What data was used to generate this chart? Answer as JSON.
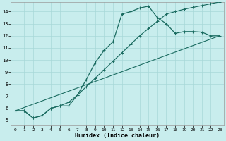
{
  "bg_color": "#c8eded",
  "grid_color": "#a8d8d8",
  "line_color": "#1a6b60",
  "xlabel": "Humidex (Indice chaleur)",
  "xlim_min": -0.5,
  "xlim_max": 23.5,
  "ylim_min": 4.6,
  "ylim_max": 14.8,
  "yticks": [
    5,
    6,
    7,
    8,
    9,
    10,
    11,
    12,
    13,
    14
  ],
  "xticks": [
    0,
    1,
    2,
    3,
    4,
    5,
    6,
    7,
    8,
    9,
    10,
    11,
    12,
    13,
    14,
    15,
    16,
    17,
    18,
    19,
    20,
    21,
    22,
    23
  ],
  "curve1_x": [
    0,
    1,
    2,
    3,
    4,
    5,
    6,
    7,
    8,
    9,
    10,
    11,
    12,
    13,
    14,
    15,
    16,
    17,
    18,
    19,
    20,
    21,
    22,
    23
  ],
  "curve1_y": [
    5.8,
    5.8,
    5.2,
    5.4,
    6.0,
    6.2,
    6.2,
    7.1,
    8.4,
    9.8,
    10.8,
    11.5,
    13.8,
    14.0,
    14.3,
    14.45,
    13.5,
    13.0,
    12.2,
    12.35,
    12.35,
    12.3,
    12.0,
    12.0
  ],
  "curve2_x": [
    0,
    1,
    2,
    3,
    4,
    5,
    6,
    7,
    8,
    9,
    10,
    11,
    12,
    13,
    14,
    15,
    16,
    17,
    18,
    19,
    20,
    21,
    22,
    23
  ],
  "curve2_y": [
    5.8,
    5.8,
    5.2,
    5.4,
    6.0,
    6.2,
    6.5,
    7.1,
    7.8,
    8.5,
    9.2,
    9.9,
    10.6,
    11.3,
    12.0,
    12.6,
    13.2,
    13.8,
    14.0,
    14.2,
    14.35,
    14.5,
    14.65,
    14.8
  ],
  "line3_x": [
    0,
    23
  ],
  "line3_y": [
    5.8,
    12.0
  ]
}
